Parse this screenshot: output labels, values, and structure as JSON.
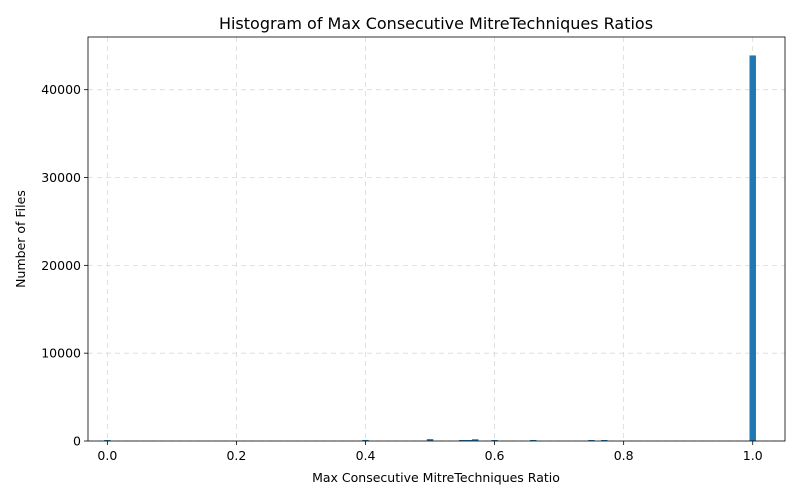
{
  "chart_data": {
    "type": "bar",
    "title": "Histogram of Max Consecutive MitreTechniques Ratios",
    "xlabel": "Max Consecutive MitreTechniques Ratio",
    "ylabel": "Number of Files",
    "xlim": [
      -0.03,
      1.05
    ],
    "ylim": [
      0,
      46000
    ],
    "xticks": [
      0.0,
      0.2,
      0.4,
      0.6,
      0.8,
      1.0
    ],
    "xtick_labels": [
      "0.0",
      "0.2",
      "0.4",
      "0.6",
      "0.8",
      "1.0"
    ],
    "yticks": [
      0,
      10000,
      20000,
      30000,
      40000
    ],
    "ytick_labels": [
      "0",
      "10000",
      "20000",
      "30000",
      "40000"
    ],
    "grid": true,
    "bin_width": 0.01,
    "color": "#1f77b4",
    "bins": [
      {
        "x": 0.0,
        "value": 10
      },
      {
        "x": 0.4,
        "value": 120
      },
      {
        "x": 0.5,
        "value": 220
      },
      {
        "x": 0.55,
        "value": 90
      },
      {
        "x": 0.56,
        "value": 80
      },
      {
        "x": 0.57,
        "value": 200
      },
      {
        "x": 0.6,
        "value": 110
      },
      {
        "x": 0.66,
        "value": 90
      },
      {
        "x": 0.75,
        "value": 70
      },
      {
        "x": 0.77,
        "value": 80
      },
      {
        "x": 1.0,
        "value": 43900
      }
    ]
  }
}
